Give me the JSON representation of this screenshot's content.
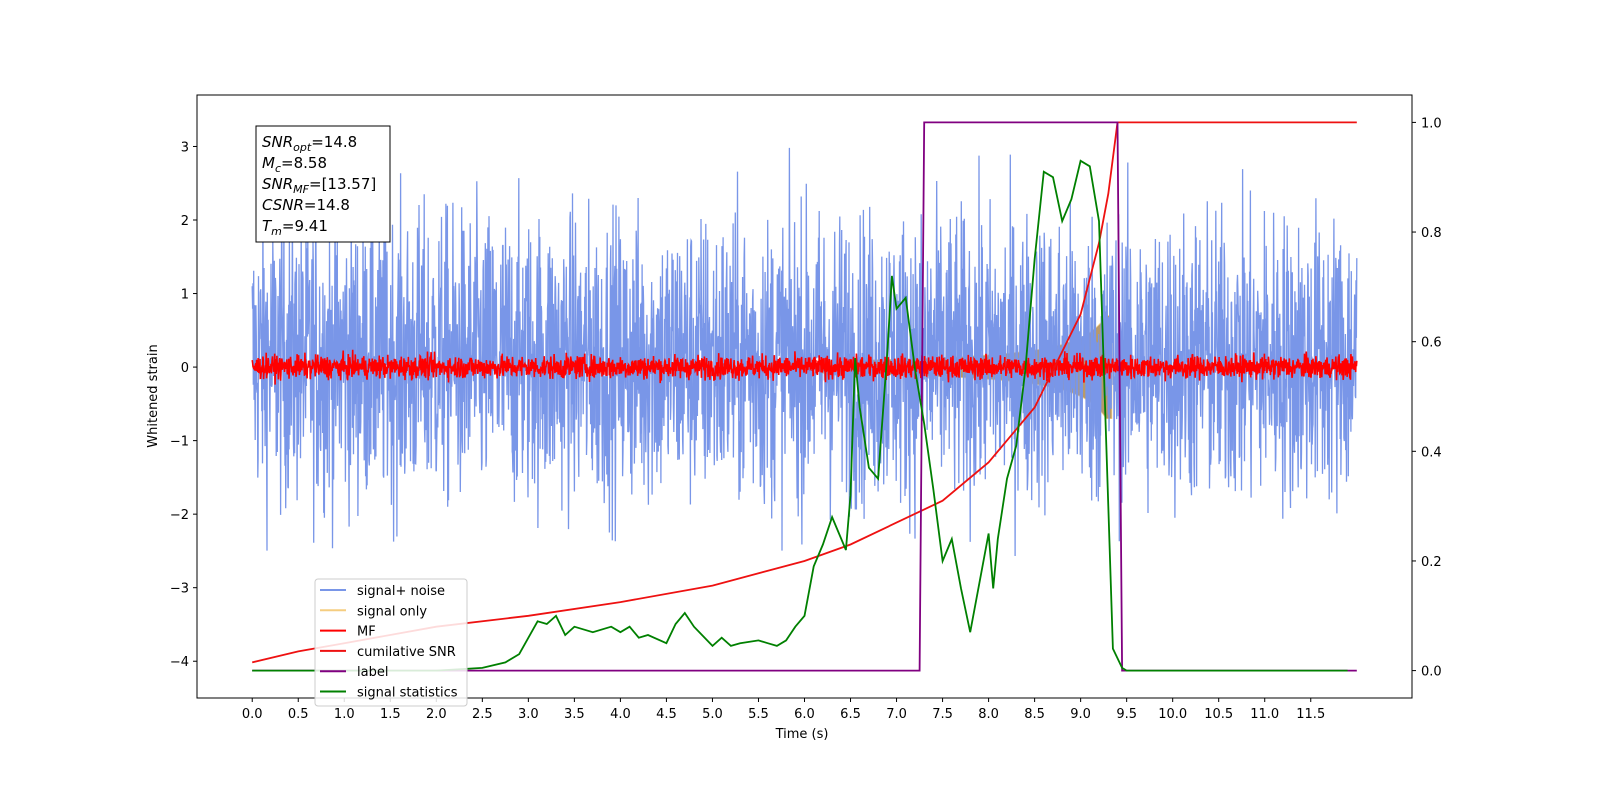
{
  "chart_data": {
    "type": "line",
    "xlabel": "Time (s)",
    "ylabel": "Whitened strain",
    "xlim": [
      -0.6,
      12.6
    ],
    "ylim": [
      -4.5,
      3.7
    ],
    "y2lim": [
      -0.05,
      1.05
    ],
    "x_ticks": [
      "0.0",
      "0.5",
      "1.0",
      "1.5",
      "2.0",
      "2.5",
      "3.0",
      "3.5",
      "4.0",
      "4.5",
      "5.0",
      "5.5",
      "6.0",
      "6.5",
      "7.0",
      "7.5",
      "8.0",
      "8.5",
      "9.0",
      "9.5",
      "10.0",
      "10.5",
      "11.0",
      "11.5"
    ],
    "y_ticks": [
      "3",
      "2",
      "1",
      "0",
      "−1",
      "−2",
      "−3",
      "−4"
    ],
    "y2_ticks": [
      "1.0",
      "0.8",
      "0.6",
      "0.4",
      "0.2",
      "0.0"
    ],
    "annotation": [
      {
        "base": "SNR",
        "sub": "opt",
        "value": "=14.8"
      },
      {
        "base": "M",
        "sub": "c",
        "value": "=8.58"
      },
      {
        "base": "SNR",
        "sub": "MF",
        "value": "=[13.57]"
      },
      {
        "base": "CSNR",
        "sub": "",
        "value": "=14.8"
      },
      {
        "base": "T",
        "sub": "m",
        "value": "=9.41"
      }
    ],
    "legend_position": "lower-left",
    "series": [
      {
        "name": "signal+ noise",
        "color": "#7996e8",
        "axis": "left",
        "kind": "noise",
        "center": 0.1,
        "amplitude": 1.0,
        "x_range": [
          0,
          12
        ]
      },
      {
        "name": "signal only",
        "color": "#f5cd80",
        "axis": "left",
        "kind": "chirp-envelope",
        "peak_x": 9.35,
        "peak_amplitude": 0.7
      },
      {
        "name": "MF",
        "color": "#ff0000",
        "axis": "left",
        "kind": "noise",
        "center": 0.0,
        "amplitude": 0.08,
        "x_range": [
          0,
          12
        ]
      },
      {
        "name": "cumilative SNR",
        "color": "#ee1111",
        "axis": "right",
        "x": [
          0.0,
          0.5,
          1.0,
          2.0,
          3.0,
          4.0,
          5.0,
          6.0,
          6.5,
          7.0,
          7.5,
          8.0,
          8.5,
          9.0,
          9.2,
          9.3,
          9.4,
          12.0
        ],
        "y": [
          0.015,
          0.035,
          0.05,
          0.08,
          0.1,
          0.125,
          0.155,
          0.2,
          0.23,
          0.27,
          0.31,
          0.38,
          0.48,
          0.65,
          0.78,
          0.87,
          1.0,
          1.0
        ]
      },
      {
        "name": "label",
        "color": "#800080",
        "axis": "right",
        "x": [
          0.0,
          7.25,
          7.3,
          9.4,
          9.45,
          12.0
        ],
        "y": [
          0.0,
          0.0,
          1.0,
          1.0,
          0.0,
          0.0
        ]
      },
      {
        "name": "signal statistics",
        "color": "#008000",
        "axis": "right",
        "x": [
          0.0,
          0.5,
          1.0,
          1.5,
          2.0,
          2.5,
          2.75,
          2.9,
          3.0,
          3.1,
          3.2,
          3.3,
          3.4,
          3.5,
          3.7,
          3.9,
          4.0,
          4.1,
          4.2,
          4.3,
          4.5,
          4.6,
          4.7,
          4.8,
          5.0,
          5.1,
          5.2,
          5.3,
          5.5,
          5.6,
          5.7,
          5.8,
          5.9,
          6.0,
          6.1,
          6.2,
          6.3,
          6.4,
          6.45,
          6.5,
          6.55,
          6.6,
          6.7,
          6.8,
          6.9,
          6.95,
          7.0,
          7.1,
          7.2,
          7.3,
          7.4,
          7.5,
          7.6,
          7.7,
          7.8,
          7.9,
          8.0,
          8.05,
          8.1,
          8.2,
          8.3,
          8.4,
          8.5,
          8.6,
          8.7,
          8.8,
          8.9,
          9.0,
          9.1,
          9.2,
          9.3,
          9.35,
          9.45,
          9.5,
          11.9
        ],
        "y": [
          0.0,
          0.0,
          0.0,
          0.0,
          0.0,
          0.005,
          0.015,
          0.03,
          0.06,
          0.09,
          0.085,
          0.1,
          0.065,
          0.08,
          0.07,
          0.08,
          0.07,
          0.08,
          0.06,
          0.065,
          0.05,
          0.085,
          0.105,
          0.08,
          0.045,
          0.06,
          0.045,
          0.05,
          0.055,
          0.05,
          0.045,
          0.055,
          0.08,
          0.1,
          0.19,
          0.23,
          0.28,
          0.24,
          0.22,
          0.32,
          0.57,
          0.48,
          0.37,
          0.35,
          0.58,
          0.72,
          0.66,
          0.68,
          0.55,
          0.45,
          0.33,
          0.2,
          0.24,
          0.15,
          0.07,
          0.16,
          0.25,
          0.15,
          0.24,
          0.35,
          0.41,
          0.55,
          0.75,
          0.91,
          0.9,
          0.82,
          0.86,
          0.93,
          0.92,
          0.82,
          0.3,
          0.04,
          0.005,
          0.0,
          0.0
        ]
      }
    ]
  }
}
